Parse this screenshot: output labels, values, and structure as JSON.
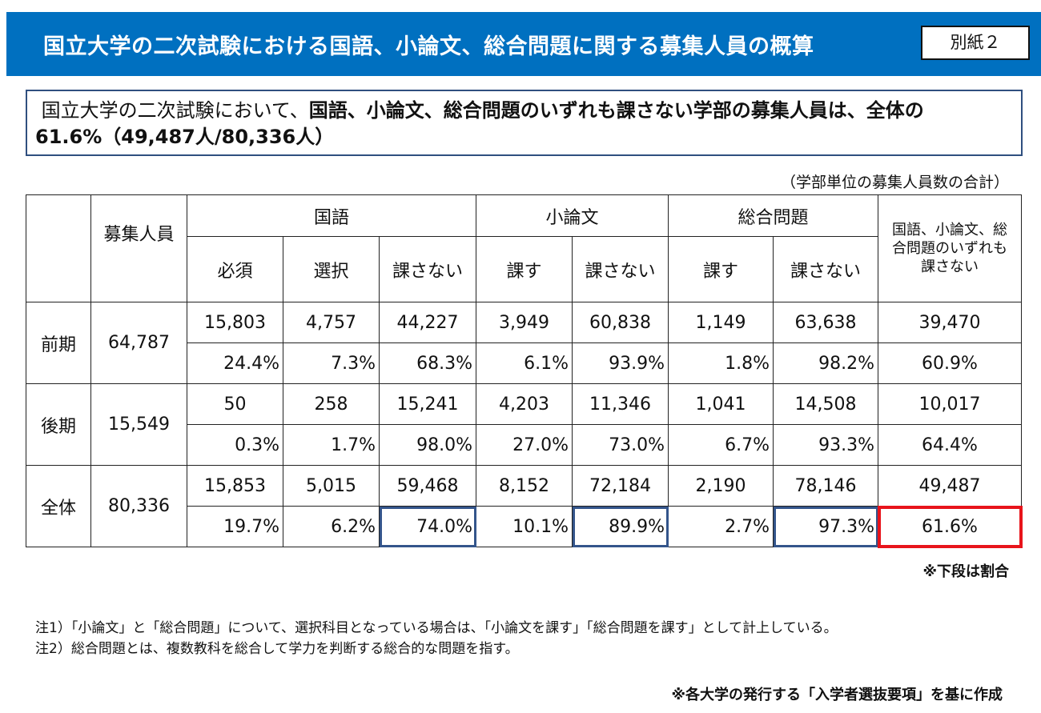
{
  "header": {
    "title": "国立大学の二次試験における国語、小論文、総合問題に関する募集人員の概算",
    "attachment": "別紙２"
  },
  "summary": {
    "normal": "国立大学の二次試験において、",
    "bold": "国語、小論文、総合問題のいずれも課さない学部の募集人員は、全体の61.6%（49,487人/80,336人）"
  },
  "unit_note": "（学部単位の募集人員数の合計）",
  "table": {
    "h_quota": "募集人員",
    "groups": [
      "国語",
      "小論文",
      "総合問題"
    ],
    "h_none": "国語、小論文、総合問題のいずれも課さない",
    "sub": [
      "必須",
      "選択",
      "課さない",
      "課す",
      "課さない",
      "課す",
      "課さない"
    ],
    "rows": [
      {
        "label": "前期",
        "quota": "64,787",
        "counts": [
          "15,803",
          "4,757",
          "44,227",
          "3,949",
          "60,838",
          "1,149",
          "63,638",
          "39,470"
        ],
        "pcts": [
          "24.4%",
          "7.3%",
          "68.3%",
          "6.1%",
          "93.9%",
          "1.8%",
          "98.2%",
          "60.9%"
        ]
      },
      {
        "label": "後期",
        "quota": "15,549",
        "counts": [
          "50",
          "258",
          "15,241",
          "4,203",
          "11,346",
          "1,041",
          "14,508",
          "10,017"
        ],
        "pcts": [
          "0.3%",
          "1.7%",
          "98.0%",
          "27.0%",
          "73.0%",
          "6.7%",
          "93.3%",
          "64.4%"
        ]
      },
      {
        "label": "全体",
        "quota": "80,336",
        "counts": [
          "15,853",
          "5,015",
          "59,468",
          "8,152",
          "72,184",
          "2,190",
          "78,146",
          "49,487"
        ],
        "pcts": [
          "19.7%",
          "6.2%",
          "74.0%",
          "10.1%",
          "89.9%",
          "2.7%",
          "97.3%",
          "61.6%"
        ]
      }
    ]
  },
  "lower_note": "※下段は割合",
  "notes": [
    "注1）「小論文」と「総合問題」について、選択科目となっている場合は、「小論文を課す」「総合問題を課す」として計上している。",
    "注2）総合問題とは、複数教科を総合して学力を判断する総合的な問題を指す。"
  ],
  "source": "※各大学の発行する「入学者選抜要項」を基に作成",
  "colors": {
    "title_bg": "#0070c0",
    "highlight_blue": "#34558b",
    "highlight_red": "#e8141b"
  }
}
